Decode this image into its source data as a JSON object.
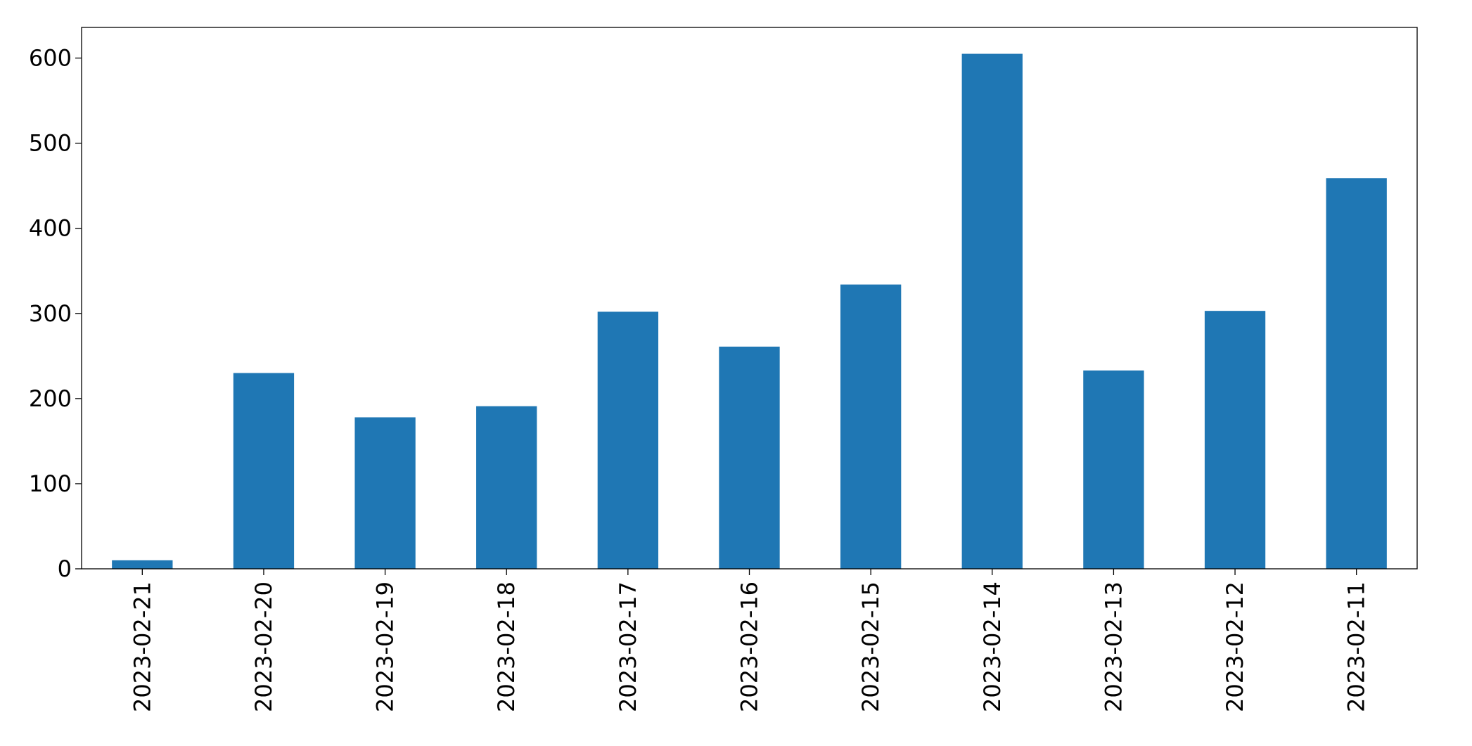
{
  "chart_data": {
    "type": "bar",
    "categories": [
      "2023-02-21",
      "2023-02-20",
      "2023-02-19",
      "2023-02-18",
      "2023-02-17",
      "2023-02-16",
      "2023-02-15",
      "2023-02-14",
      "2023-02-13",
      "2023-02-12",
      "2023-02-11"
    ],
    "values": [
      10,
      230,
      178,
      191,
      302,
      261,
      334,
      605,
      233,
      303,
      459
    ],
    "color": "#1f77b4",
    "ylim": [
      0,
      636
    ],
    "yticks": [
      0,
      100,
      200,
      300,
      400,
      500,
      600
    ],
    "grid": false
  }
}
